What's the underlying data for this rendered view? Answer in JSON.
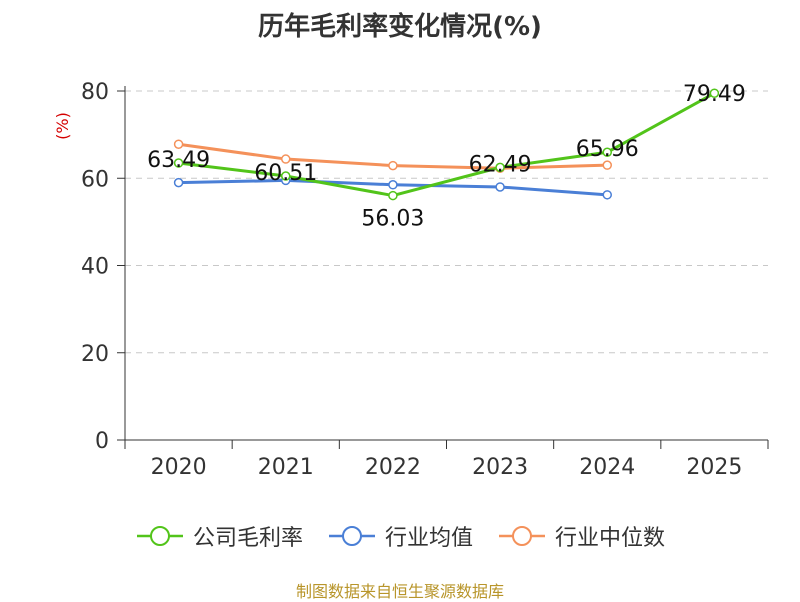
{
  "title": "历年毛利率变化情况(%)",
  "source": "制图数据来自恒生聚源数据库",
  "chart_data": {
    "type": "line",
    "categories": [
      "2020",
      "2021",
      "2022",
      "2023",
      "2024",
      "2025"
    ],
    "ylabel": "(%)",
    "ylim": [
      0,
      80
    ],
    "yticks": [
      0,
      20,
      40,
      60,
      80
    ],
    "grid": true,
    "legend_placement": "bottom",
    "series": [
      {
        "name": "公司毛利率",
        "color": "#52c41a",
        "values": [
          63.49,
          60.51,
          56.03,
          62.49,
          65.96,
          79.49
        ],
        "labels": [
          "63.49",
          "60.51",
          "56.03",
          "62.49",
          "65.96",
          "79.49"
        ]
      },
      {
        "name": "行业均值",
        "color": "#4a7fd6",
        "values": [
          59.0,
          59.5,
          58.5,
          58.0,
          56.2,
          null
        ]
      },
      {
        "name": "行业中位数",
        "color": "#f4915a",
        "values": [
          67.8,
          64.4,
          62.9,
          62.3,
          63.0,
          null
        ]
      }
    ]
  }
}
